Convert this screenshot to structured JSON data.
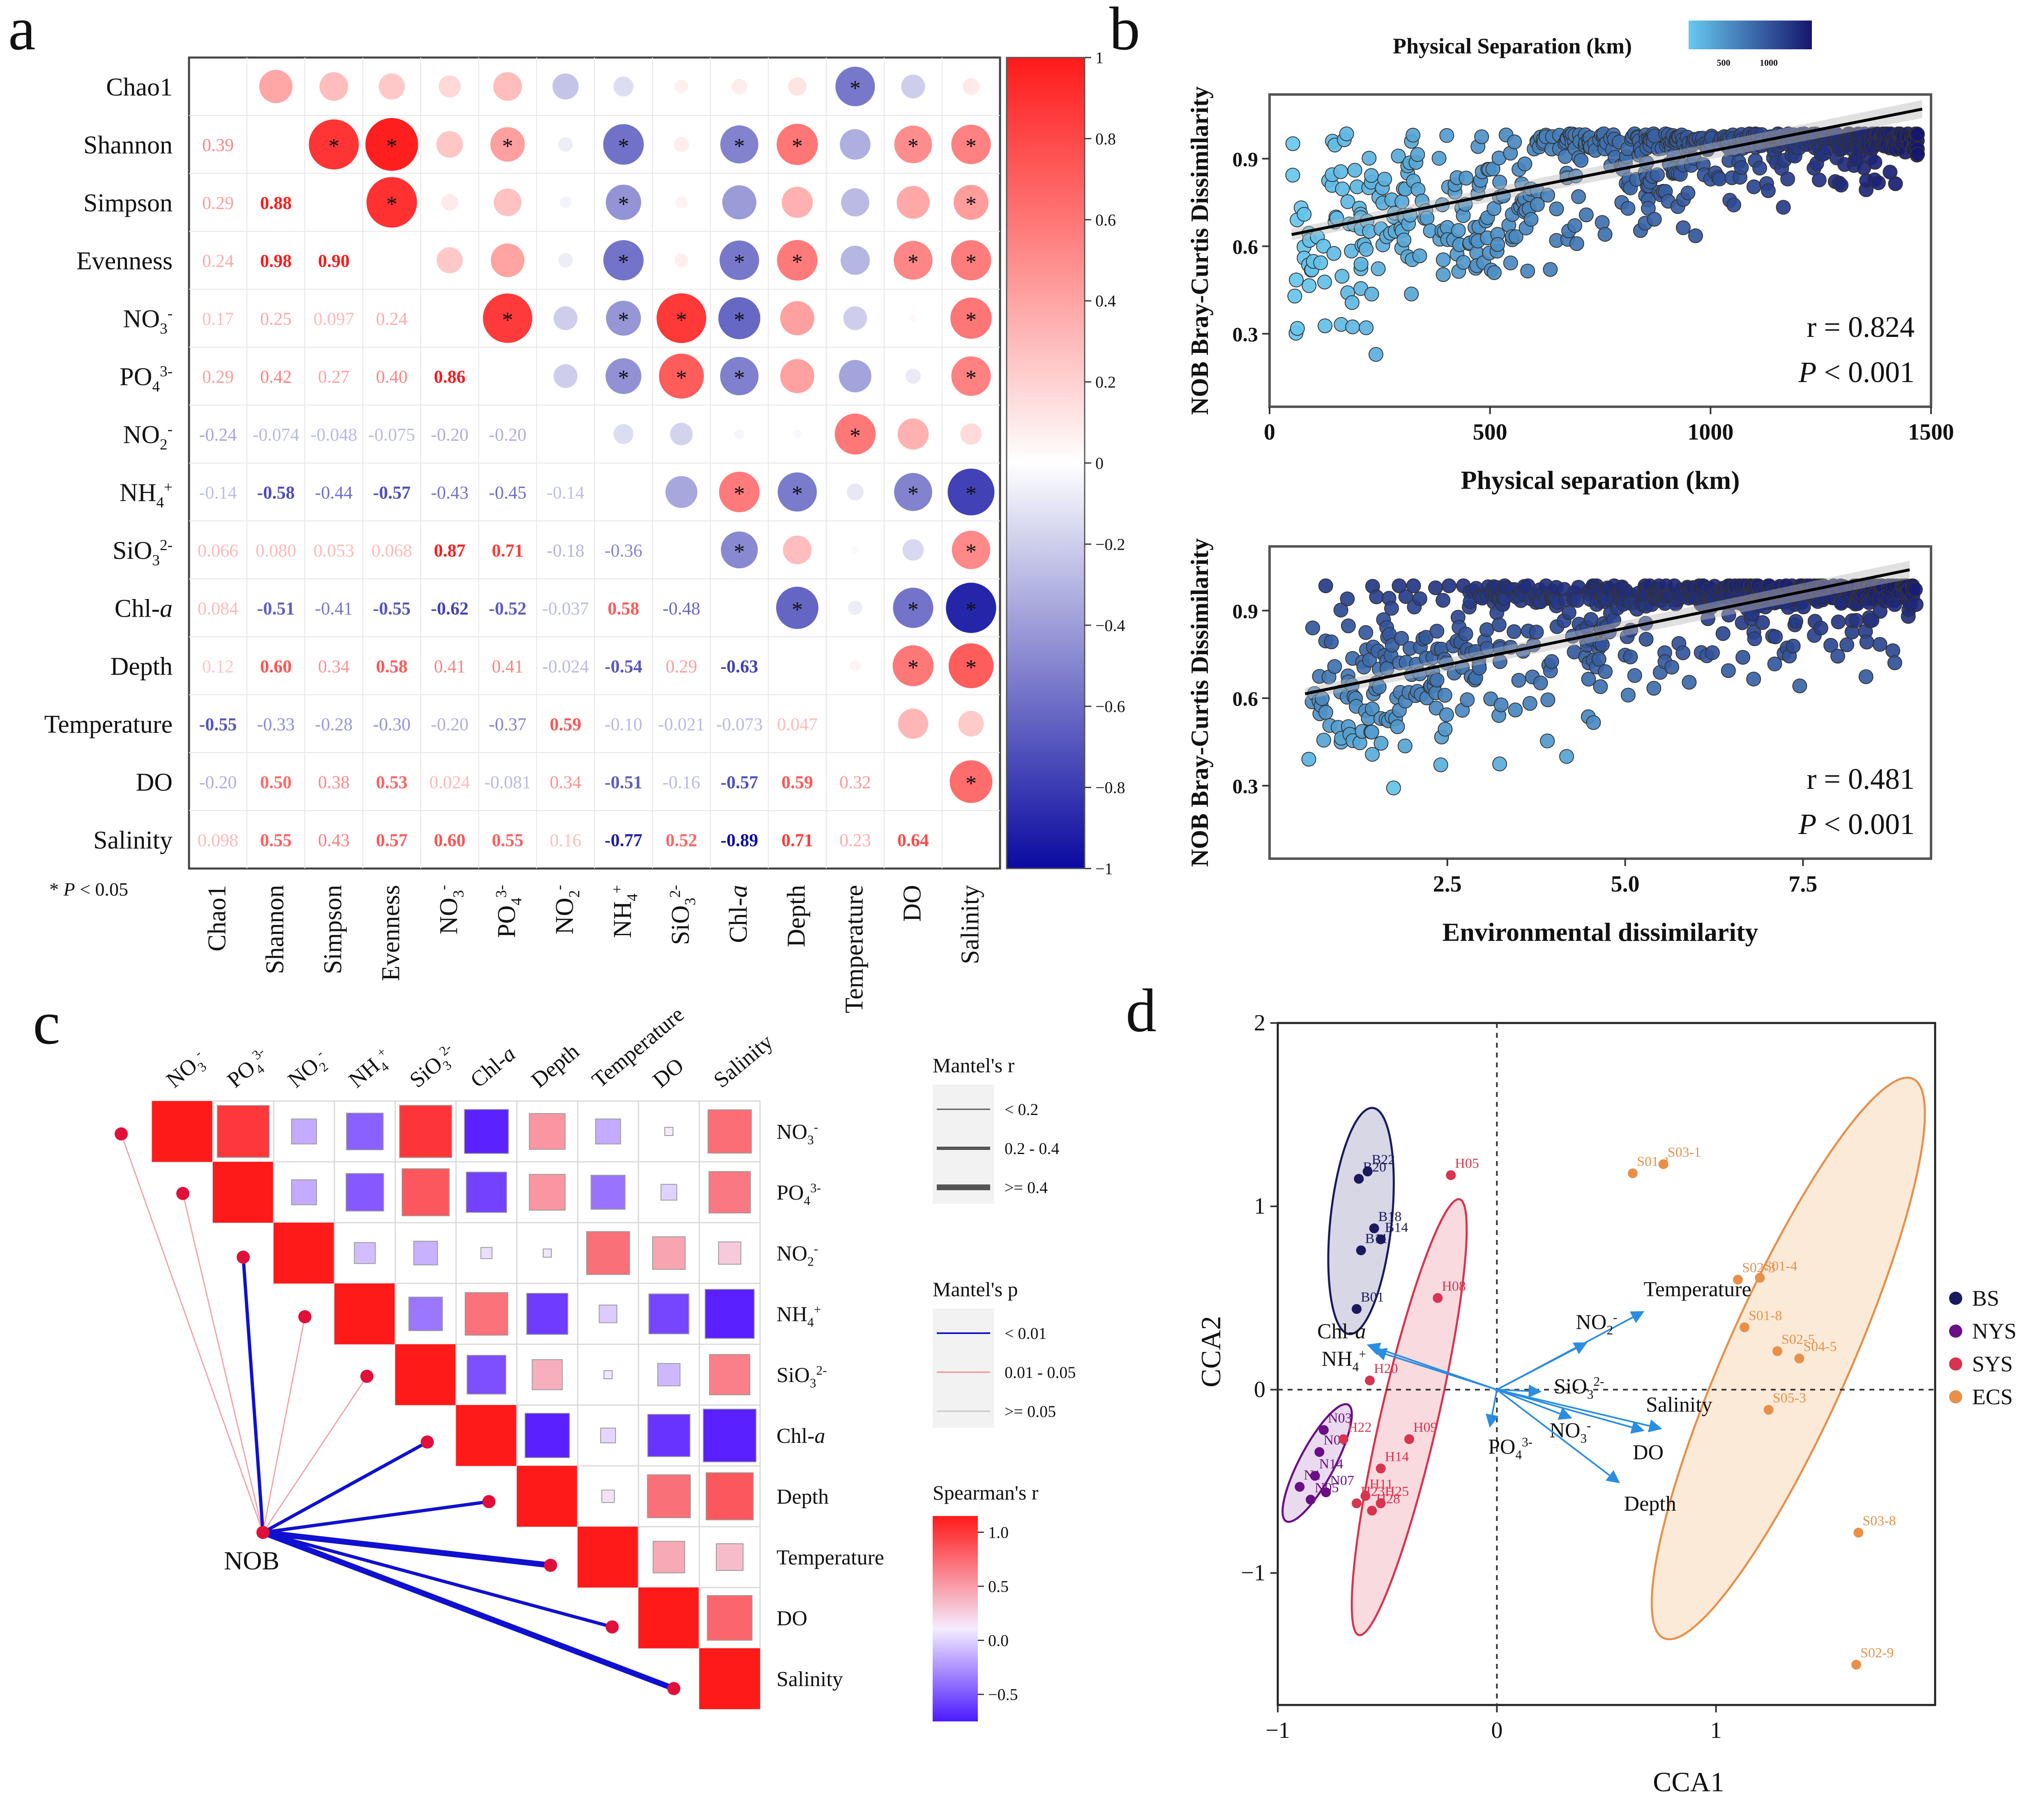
{
  "figure": {
    "panel_labels": [
      "a",
      "b",
      "c",
      "d"
    ]
  },
  "chart_data": [
    {
      "id": "a",
      "type": "heatmap",
      "title": "",
      "variables": [
        "Chao1",
        "Shannon",
        "Simpson",
        "Evenness",
        "NO3-",
        "PO43-",
        "NO2-",
        "NH4+",
        "SiO32-",
        "Chl-a",
        "Depth",
        "Temperature",
        "DO",
        "Salinity"
      ],
      "variable_labels": [
        {
          "t": "Chao1"
        },
        {
          "t": "Shannon"
        },
        {
          "t": "Simpson"
        },
        {
          "t": "Evenness"
        },
        {
          "t": "NO",
          "sub": "3",
          "sup": "-"
        },
        {
          "t": "PO",
          "sub": "4",
          "sup": "3-"
        },
        {
          "t": "NO",
          "sub": "2",
          "sup": "-"
        },
        {
          "t": "NH",
          "sub": "4",
          "sup": "+"
        },
        {
          "t": "SiO",
          "sub": "3",
          "sup": "2-"
        },
        {
          "t": "Chl-",
          "it": "a"
        },
        {
          "t": "Depth"
        },
        {
          "t": "Temperature"
        },
        {
          "t": "DO"
        },
        {
          "t": "Salinity"
        }
      ],
      "lower_triangle_labels": [
        [],
        [
          "0.39"
        ],
        [
          "0.29",
          "0.88"
        ],
        [
          "0.24",
          "0.98",
          "0.90"
        ],
        [
          "0.17",
          "0.25",
          "0.097",
          "0.24"
        ],
        [
          "0.29",
          "0.42",
          "0.27",
          "0.40",
          "0.86"
        ],
        [
          "-0.24",
          "-0.074",
          "-0.048",
          "-0.075",
          "-0.20",
          "-0.20"
        ],
        [
          "-0.14",
          "-0.58",
          "-0.44",
          "-0.57",
          "-0.43",
          "-0.45",
          "-0.14"
        ],
        [
          "0.066",
          "0.080",
          "0.053",
          "0.068",
          "0.87",
          "0.71",
          "-0.18",
          "-0.36"
        ],
        [
          "0.084",
          "-0.51",
          "-0.41",
          "-0.55",
          "-0.62",
          "-0.52",
          "-0.037",
          "0.58",
          "-0.48"
        ],
        [
          "0.12",
          "0.60",
          "0.34",
          "0.58",
          "0.41",
          "0.41",
          "-0.024",
          "-0.54",
          "0.29",
          "-0.63"
        ],
        [
          "-0.55",
          "-0.33",
          "-0.28",
          "-0.30",
          "-0.20",
          "-0.37",
          "0.59",
          "-0.10",
          "-0.021",
          "-0.073",
          "0.047"
        ],
        [
          "-0.20",
          "0.50",
          "0.38",
          "0.53",
          "0.024",
          "-0.081",
          "0.34",
          "-0.51",
          "-0.16",
          "-0.57",
          "0.59",
          "0.32"
        ],
        [
          "0.098",
          "0.55",
          "0.43",
          "0.57",
          "0.60",
          "0.55",
          "0.16",
          "-0.77",
          "0.52",
          "-0.89",
          "0.71",
          "0.23",
          "0.64"
        ]
      ],
      "significant_marker": "*",
      "colorbar_ticks": [
        "1",
        "0.8",
        "0.6",
        "0.4",
        "0.2",
        "0",
        "−0.2",
        "−0.4",
        "−0.6",
        "−0.8",
        "−1"
      ],
      "colorbar_range": [
        -1,
        1
      ],
      "footnote": "* P < 0.05",
      "colors": {
        "pos": "#ff0000",
        "neg": "#0000a0",
        "mid": "#ffffff"
      }
    },
    {
      "id": "b1",
      "type": "scatter",
      "xlabel": "Physical separation (km)",
      "ylabel": "NOB Bray-Curtis Dissimilarity",
      "xlim": [
        0,
        1500
      ],
      "ylim": [
        0.05,
        1.12
      ],
      "xticks": [
        "0",
        "500",
        "1000",
        "1500"
      ],
      "xtick_values": [
        0,
        500,
        1000,
        1500
      ],
      "yticks": [
        "0.3",
        "0.6",
        "0.9"
      ],
      "ytick_values": [
        0.3,
        0.6,
        0.9
      ],
      "legend_title": "Physical Separation (km)",
      "legend_ticks": [
        "500",
        "1000"
      ],
      "fit_line": {
        "x": [
          50,
          1480
        ],
        "y": [
          0.64,
          1.07
        ]
      },
      "annotation_r": "r = 0.824",
      "annotation_p": "P < 0.001",
      "n_points": 620,
      "seed": 11
    },
    {
      "id": "b2",
      "type": "scatter",
      "xlabel": "Environmental dissimilarity",
      "ylabel": "NOB Bray-Curtis Dissimilarity",
      "xlim": [
        0,
        9.3
      ],
      "ylim": [
        0.05,
        1.12
      ],
      "xticks": [
        "2.5",
        "5.0",
        "7.5"
      ],
      "xtick_values": [
        2.5,
        5.0,
        7.5
      ],
      "yticks": [
        "0.3",
        "0.6",
        "0.9"
      ],
      "ytick_values": [
        0.3,
        0.6,
        0.9
      ],
      "fit_line": {
        "x": [
          0.5,
          9.0
        ],
        "y": [
          0.615,
          1.04
        ]
      },
      "annotation_r": "r = 0.481",
      "annotation_p": "P < 0.001",
      "n_points": 620,
      "seed": 29
    },
    {
      "id": "c",
      "type": "heatmap",
      "variables": [
        {
          "t": "NO",
          "sub": "3",
          "sup": "-"
        },
        {
          "t": "PO",
          "sub": "4",
          "sup": "3-"
        },
        {
          "t": "NO",
          "sub": "2",
          "sup": "-"
        },
        {
          "t": "NH",
          "sub": "4",
          "sup": "+"
        },
        {
          "t": "SiO",
          "sub": "3",
          "sup": "2-"
        },
        {
          "t": "Chl-",
          "it": "a"
        },
        {
          "t": "Depth"
        },
        {
          "t": "Temperature"
        },
        {
          "t": "DO"
        },
        {
          "t": "Salinity"
        }
      ],
      "upper_triangle_values": [
        [
          1.0,
          0.86,
          -0.2,
          -0.43,
          0.87,
          -0.62,
          0.41,
          -0.2,
          0.02,
          0.6
        ],
        [
          null,
          1.0,
          -0.2,
          -0.45,
          0.71,
          -0.52,
          0.41,
          -0.37,
          -0.08,
          0.55
        ],
        [
          null,
          null,
          1.0,
          -0.14,
          -0.18,
          -0.04,
          -0.02,
          0.59,
          0.34,
          0.16
        ],
        [
          null,
          null,
          null,
          1.0,
          -0.36,
          0.58,
          -0.54,
          -0.1,
          -0.51,
          -0.77
        ],
        [
          null,
          null,
          null,
          null,
          1.0,
          -0.48,
          0.29,
          -0.02,
          -0.16,
          0.52
        ],
        [
          null,
          null,
          null,
          null,
          null,
          1.0,
          -0.63,
          -0.07,
          -0.57,
          -0.89
        ],
        [
          null,
          null,
          null,
          null,
          null,
          null,
          1.0,
          0.05,
          0.59,
          0.71
        ],
        [
          null,
          null,
          null,
          null,
          null,
          null,
          null,
          1.0,
          0.32,
          0.23
        ],
        [
          null,
          null,
          null,
          null,
          null,
          null,
          null,
          null,
          1.0,
          0.64
        ],
        [
          null,
          null,
          null,
          null,
          null,
          null,
          null,
          null,
          null,
          1.0
        ]
      ],
      "hub_label": "NOB",
      "mantel_edges": [
        {
          "target": 0,
          "r_class": "< 0.2",
          "p_class": "0.01 - 0.05"
        },
        {
          "target": 1,
          "r_class": "< 0.2",
          "p_class": "0.01 - 0.05"
        },
        {
          "target": 2,
          "r_class": "0.2 - 0.4",
          "p_class": "< 0.01"
        },
        {
          "target": 3,
          "r_class": "< 0.2",
          "p_class": "0.01 - 0.05"
        },
        {
          "target": 4,
          "r_class": "< 0.2",
          "p_class": "0.01 - 0.05"
        },
        {
          "target": 5,
          "r_class": "0.2 - 0.4",
          "p_class": "< 0.01"
        },
        {
          "target": 6,
          "r_class": "0.2 - 0.4",
          "p_class": "< 0.01"
        },
        {
          "target": 7,
          "r_class": ">= 0.4",
          "p_class": "< 0.01"
        },
        {
          "target": 8,
          "r_class": "0.2 - 0.4",
          "p_class": "< 0.01"
        },
        {
          "target": 9,
          "r_class": ">= 0.4",
          "p_class": "< 0.01"
        }
      ],
      "legend_mantel_r_title": "Mantel's r",
      "legend_mantel_r": [
        "< 0.2",
        "0.2 - 0.4",
        ">= 0.4"
      ],
      "legend_mantel_p_title": "Mantel's p",
      "legend_mantel_p": [
        "< 0.01",
        "0.01 - 0.05",
        ">= 0.05"
      ],
      "legend_spearman_title": "Spearman's r",
      "legend_spearman_ticks": [
        "1.0",
        "0.5",
        "0.0",
        "−0.5"
      ],
      "legend_spearman_values": [
        1.0,
        0.5,
        0.0,
        -0.5
      ],
      "colors": {
        "p_strong": "#1010d0",
        "p_mid": "#f4a0a8",
        "p_weak": "#cfcfcf",
        "node": "#e0103a"
      }
    },
    {
      "id": "d",
      "type": "scatter",
      "xlabel": "CCA1",
      "ylabel": "CCA2",
      "xlim": [
        -1.0,
        2.0
      ],
      "ylim": [
        -1.72,
        2.0
      ],
      "xticks": [
        "−1",
        "0",
        "1"
      ],
      "xtick_values": [
        -1,
        0,
        1
      ],
      "yticks": [
        "−1",
        "0",
        "1",
        "2"
      ],
      "ytick_values": [
        -1,
        0,
        1,
        2
      ],
      "groups": [
        {
          "name": "BS",
          "color": "#1a1a5e"
        },
        {
          "name": "NYS",
          "color": "#6a0f85"
        },
        {
          "name": "SYS",
          "color": "#d8344f"
        },
        {
          "name": "ECS",
          "color": "#e8904a"
        }
      ],
      "ellipses": [
        {
          "group": "BS",
          "cx": -0.62,
          "cy": 0.92,
          "rx": 0.14,
          "ry": 0.62,
          "angle": 6,
          "fill": "#c9c9de"
        },
        {
          "group": "NYS",
          "cx": -0.82,
          "cy": -0.4,
          "rx": 0.08,
          "ry": 0.36,
          "angle": 28,
          "fill": "#e3cde9"
        },
        {
          "group": "SYS",
          "cx": -0.4,
          "cy": -0.15,
          "rx": 0.13,
          "ry": 1.22,
          "angle": 13,
          "fill": "#f7cdd3"
        },
        {
          "group": "ECS",
          "cx": 1.33,
          "cy": 0.17,
          "rx": 0.28,
          "ry": 1.67,
          "angle": 24,
          "fill": "#fbe3cb"
        }
      ],
      "points": [
        {
          "label": "B22",
          "group": "BS",
          "x": -0.59,
          "y": 1.19
        },
        {
          "label": "B20",
          "group": "BS",
          "x": -0.63,
          "y": 1.15
        },
        {
          "label": "B18",
          "group": "BS",
          "x": -0.56,
          "y": 0.88
        },
        {
          "label": "B14",
          "group": "BS",
          "x": -0.53,
          "y": 0.82
        },
        {
          "label": "B11",
          "group": "BS",
          "x": -0.62,
          "y": 0.76
        },
        {
          "label": "B01",
          "group": "BS",
          "x": -0.64,
          "y": 0.44
        },
        {
          "label": "N03",
          "group": "NYS",
          "x": -0.79,
          "y": -0.22
        },
        {
          "label": "N01",
          "group": "NYS",
          "x": -0.81,
          "y": -0.34
        },
        {
          "label": "N14",
          "group": "NYS",
          "x": -0.83,
          "y": -0.47
        },
        {
          "label": "N1",
          "group": "NYS",
          "x": -0.9,
          "y": -0.53
        },
        {
          "label": "N05",
          "group": "NYS",
          "x": -0.85,
          "y": -0.6
        },
        {
          "label": "N07",
          "group": "NYS",
          "x": -0.78,
          "y": -0.56
        },
        {
          "label": "H05",
          "group": "SYS",
          "x": -0.21,
          "y": 1.17
        },
        {
          "label": "H08",
          "group": "SYS",
          "x": -0.27,
          "y": 0.5
        },
        {
          "label": "H20",
          "group": "SYS",
          "x": -0.58,
          "y": 0.05
        },
        {
          "label": "H22",
          "group": "SYS",
          "x": -0.7,
          "y": -0.27
        },
        {
          "label": "H09",
          "group": "SYS",
          "x": -0.4,
          "y": -0.27
        },
        {
          "label": "H14",
          "group": "SYS",
          "x": -0.53,
          "y": -0.43
        },
        {
          "label": "H11",
          "group": "SYS",
          "x": -0.6,
          "y": -0.58
        },
        {
          "label": "H23",
          "group": "SYS",
          "x": -0.64,
          "y": -0.62
        },
        {
          "label": "H25",
          "group": "SYS",
          "x": -0.53,
          "y": -0.62
        },
        {
          "label": "H28",
          "group": "SYS",
          "x": -0.57,
          "y": -0.66
        },
        {
          "label": "S03-1",
          "group": "ECS",
          "x": 0.76,
          "y": 1.23
        },
        {
          "label": "S01-1",
          "group": "ECS",
          "x": 0.62,
          "y": 1.18
        },
        {
          "label": "S01-4",
          "group": "ECS",
          "x": 1.2,
          "y": 0.61
        },
        {
          "label": "S02-3",
          "group": "ECS",
          "x": 1.1,
          "y": 0.6
        },
        {
          "label": "S01-8",
          "group": "ECS",
          "x": 1.13,
          "y": 0.34
        },
        {
          "label": "S02-5",
          "group": "ECS",
          "x": 1.28,
          "y": 0.21
        },
        {
          "label": "S04-5",
          "group": "ECS",
          "x": 1.38,
          "y": 0.17
        },
        {
          "label": "S05-3",
          "group": "ECS",
          "x": 1.24,
          "y": -0.11
        },
        {
          "label": "S03-8",
          "group": "ECS",
          "x": 1.65,
          "y": -0.78
        },
        {
          "label": "S02-9",
          "group": "ECS",
          "x": 1.64,
          "y": -1.5
        }
      ],
      "arrows": [
        {
          "label": "Temperature",
          "x": 0.66,
          "y": 0.42,
          "lx": 0.67,
          "ly": 0.51
        },
        {
          "label": "NO2-",
          "sub": "2",
          "sup": "-",
          "base": "NO",
          "x": 0.4,
          "y": 0.25,
          "lx": 0.36,
          "ly": 0.33
        },
        {
          "label": "Chl-a",
          "base": "Chl-",
          "it": "a",
          "x": -0.58,
          "y": 0.24,
          "lx": -0.82,
          "ly": 0.28
        },
        {
          "label": "NH4+",
          "base": "NH",
          "sub": "4",
          "sup": "+",
          "x": -0.55,
          "y": 0.21,
          "lx": -0.8,
          "ly": 0.13
        },
        {
          "label": "SiO32-",
          "base": "SiO",
          "sub": "3",
          "sup": "2-",
          "x": 0.19,
          "y": -0.01,
          "lx": 0.26,
          "ly": -0.02
        },
        {
          "label": "Salinity",
          "x": 0.74,
          "y": -0.21,
          "lx": 0.68,
          "ly": -0.12
        },
        {
          "label": "NO3-",
          "base": "NO",
          "sub": "3",
          "sup": "-",
          "x": 0.33,
          "y": -0.15,
          "lx": 0.24,
          "ly": -0.26
        },
        {
          "label": "DO",
          "x": 0.66,
          "y": -0.22,
          "lx": 0.62,
          "ly": -0.38
        },
        {
          "label": "PO43-",
          "base": "PO",
          "sub": "4",
          "sup": "3-",
          "x": -0.03,
          "y": -0.19,
          "lx": -0.04,
          "ly": -0.35
        },
        {
          "label": "Depth",
          "x": 0.55,
          "y": -0.5,
          "lx": 0.58,
          "ly": -0.66
        }
      ],
      "arrow_color": "#2b8de0"
    }
  ]
}
